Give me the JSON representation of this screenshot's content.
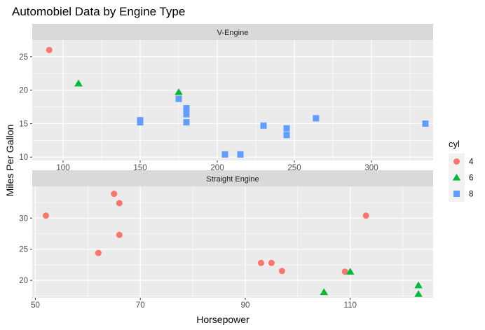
{
  "chart_data": {
    "type": "scatter",
    "title": "Automobiel Data by Engine Type",
    "xlabel": "Horsepower",
    "ylabel": "Miles Per Gallon",
    "legend": {
      "title": "cyl",
      "position": "right",
      "entries": [
        {
          "label": "4",
          "shape": "circle",
          "color": "#F8766D"
        },
        {
          "label": "6",
          "shape": "triangle",
          "color": "#00BA38"
        },
        {
          "label": "8",
          "shape": "square",
          "color": "#619CFF"
        }
      ]
    },
    "panels": [
      {
        "strip": "V-Engine",
        "xlim": [
          80,
          340
        ],
        "ylim": [
          9.5,
          27.5
        ],
        "xticks": [
          100,
          150,
          200,
          250,
          300
        ],
        "yticks": [
          10,
          15,
          20,
          25
        ],
        "points": [
          {
            "x": 91,
            "y": 26,
            "cyl": "4"
          },
          {
            "x": 110,
            "y": 21,
            "cyl": "6"
          },
          {
            "x": 110,
            "y": 21,
            "cyl": "6"
          },
          {
            "x": 175,
            "y": 19.7,
            "cyl": "6"
          },
          {
            "x": 175,
            "y": 18.7,
            "cyl": "8"
          },
          {
            "x": 150,
            "y": 15.5,
            "cyl": "8"
          },
          {
            "x": 150,
            "y": 15.2,
            "cyl": "8"
          },
          {
            "x": 180,
            "y": 17.3,
            "cyl": "8"
          },
          {
            "x": 180,
            "y": 16.4,
            "cyl": "8"
          },
          {
            "x": 180,
            "y": 15.2,
            "cyl": "8"
          },
          {
            "x": 205,
            "y": 10.4,
            "cyl": "8"
          },
          {
            "x": 215,
            "y": 10.4,
            "cyl": "8"
          },
          {
            "x": 230,
            "y": 14.7,
            "cyl": "8"
          },
          {
            "x": 245,
            "y": 14.3,
            "cyl": "8"
          },
          {
            "x": 245,
            "y": 13.3,
            "cyl": "8"
          },
          {
            "x": 264,
            "y": 15.8,
            "cyl": "8"
          },
          {
            "x": 335,
            "y": 15.0,
            "cyl": "8"
          }
        ]
      },
      {
        "strip": "Straight Engine",
        "xlim": [
          49.4,
          125.8
        ],
        "ylim": [
          17.2,
          35.1
        ],
        "xticks": [
          50,
          70,
          90,
          110
        ],
        "yticks": [
          20,
          25,
          30
        ],
        "points": [
          {
            "x": 52,
            "y": 30.4,
            "cyl": "4"
          },
          {
            "x": 62,
            "y": 24.4,
            "cyl": "4"
          },
          {
            "x": 65,
            "y": 33.9,
            "cyl": "4"
          },
          {
            "x": 66,
            "y": 32.4,
            "cyl": "4"
          },
          {
            "x": 66,
            "y": 27.3,
            "cyl": "4"
          },
          {
            "x": 93,
            "y": 22.8,
            "cyl": "4"
          },
          {
            "x": 95,
            "y": 22.8,
            "cyl": "4"
          },
          {
            "x": 97,
            "y": 21.5,
            "cyl": "4"
          },
          {
            "x": 109,
            "y": 21.4,
            "cyl": "4"
          },
          {
            "x": 113,
            "y": 30.4,
            "cyl": "4"
          },
          {
            "x": 105,
            "y": 18.1,
            "cyl": "6"
          },
          {
            "x": 110,
            "y": 21.4,
            "cyl": "6"
          },
          {
            "x": 123,
            "y": 19.2,
            "cyl": "6"
          },
          {
            "x": 123,
            "y": 17.8,
            "cyl": "6"
          }
        ]
      }
    ]
  }
}
